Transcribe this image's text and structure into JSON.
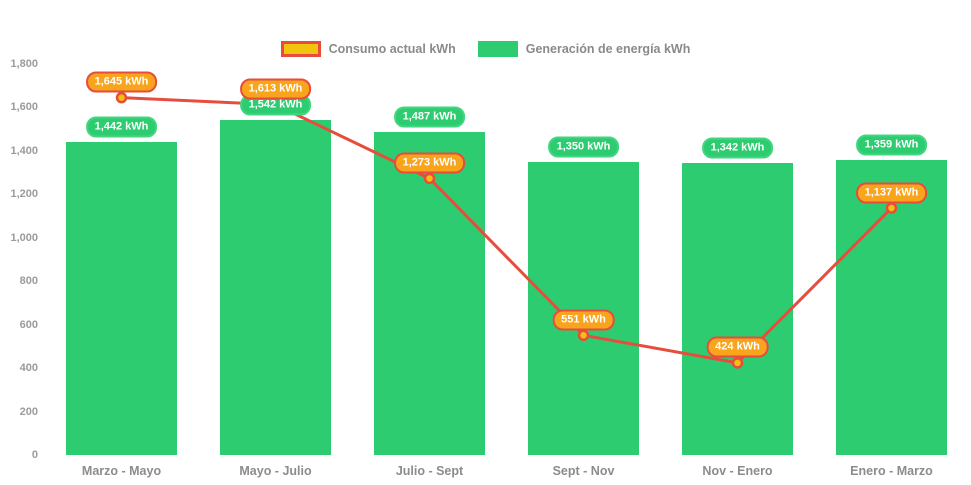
{
  "page": {
    "background": "#ffffff"
  },
  "legend": {
    "items": [
      {
        "label": "Consumo actual kWh",
        "series": "line",
        "swatch_fill": "#f1c40f",
        "swatch_border": "#e74c3c"
      },
      {
        "label": "Generación de energía kWh",
        "series": "bar",
        "swatch_fill": "#2ecc71",
        "swatch_border": "#2ecc71"
      }
    ]
  },
  "chart_data": {
    "type": "bar",
    "subtype": "bar-line-combo",
    "title": "",
    "xlabel": "",
    "ylabel": "",
    "unit": "kWh",
    "categories": [
      "Marzo - Mayo",
      "Mayo - Julio",
      "Julio - Sept",
      "Sept - Nov",
      "Nov - Enero",
      "Enero - Marzo"
    ],
    "series": [
      {
        "name": "Generación de energía kWh",
        "type": "bar",
        "color": "#2ecc71",
        "label_bg": "#2ecc71",
        "label_border": "#43d681",
        "values": [
          1442,
          1542,
          1487,
          1350,
          1342,
          1359
        ],
        "point_labels": [
          "1,442 kWh",
          "1,542 kWh",
          "1,487 kWh",
          "1,350 kWh",
          "1,342 kWh",
          "1,359 kWh"
        ]
      },
      {
        "name": "Consumo actual kWh",
        "type": "line",
        "color": "#e74c3c",
        "marker_fill": "#f4c00e",
        "marker_stroke": "#e74c3c",
        "label_bg": "#f8a41d",
        "label_border": "#e74c3c",
        "values": [
          1645,
          1613,
          1273,
          551,
          424,
          1137
        ],
        "point_labels": [
          "1,645 kWh",
          "1,613 kWh",
          "1,273 kWh",
          "551 kWh",
          "424 kWh",
          "1,137 kWh"
        ]
      }
    ],
    "ylim": [
      0,
      1800
    ],
    "ytick_step": 200,
    "ytick_labels": [
      "0",
      "200",
      "400",
      "600",
      "800",
      "1,000",
      "1,200",
      "1,400",
      "1,600",
      "1,800"
    ],
    "grid": false,
    "legend_position": "top-center",
    "axis_text_color": "#9b9b9b"
  }
}
